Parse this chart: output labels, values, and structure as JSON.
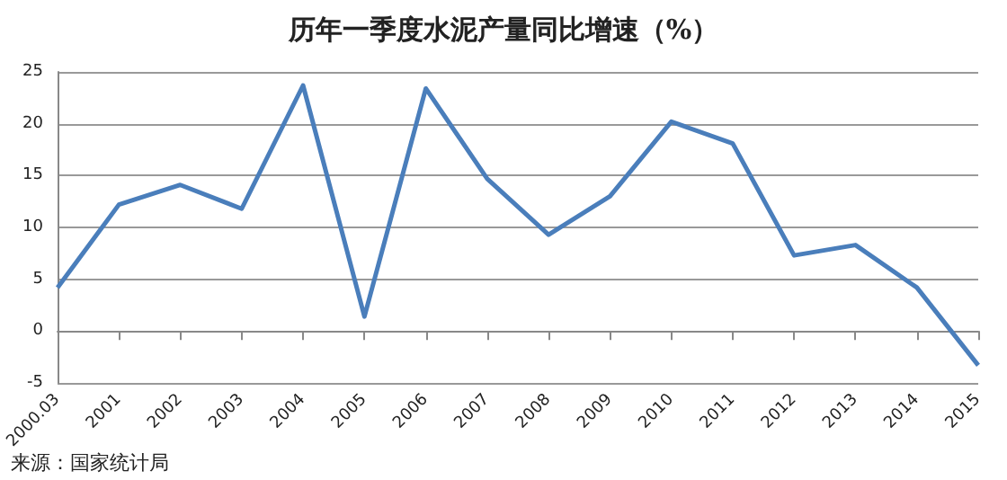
{
  "chart_data": {
    "type": "line",
    "title": "历年一季度水泥产量同比增速（%）",
    "categories": [
      "2000.03",
      "2001",
      "2002",
      "2003",
      "2004",
      "2005",
      "2006",
      "2007",
      "2008",
      "2009",
      "2010",
      "2011",
      "2012",
      "2013",
      "2014",
      "2015"
    ],
    "series": [
      {
        "color": "#4a7ebb",
        "values": [
          4.2,
          12.2,
          14.1,
          11.8,
          23.7,
          1.4,
          23.4,
          14.7,
          9.3,
          13.0,
          20.2,
          18.1,
          7.3,
          8.3,
          4.2,
          -3.3
        ]
      }
    ],
    "ylim": [
      -5,
      25
    ],
    "yticks": [
      -5,
      0,
      5,
      10,
      15,
      20,
      25
    ],
    "grid": "y",
    "marker": "none",
    "line_style": "solid",
    "annotations": [
      "来源：国家统计局"
    ]
  }
}
